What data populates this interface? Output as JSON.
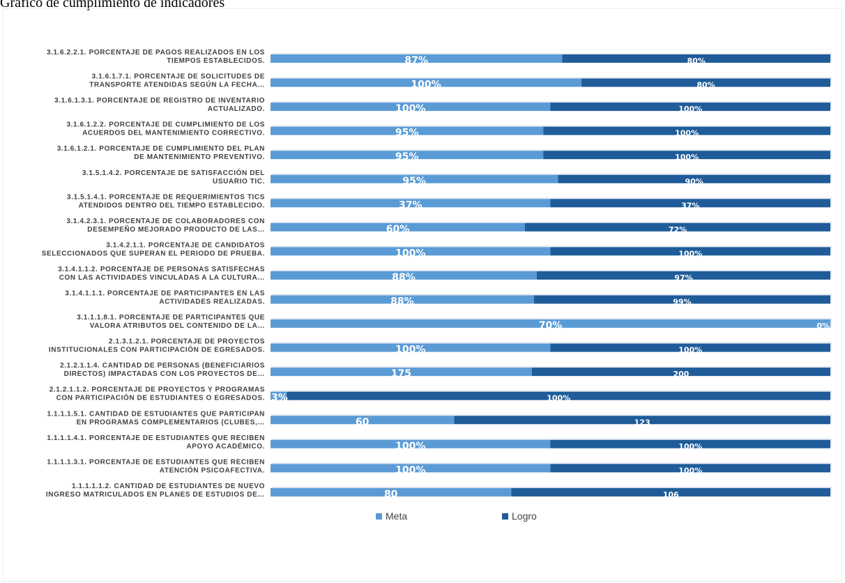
{
  "page": {
    "title": "Gráfico de cumplimiento de indicadores"
  },
  "chart_data": {
    "type": "bar",
    "orientation": "horizontal-stacked-100",
    "title": "",
    "xlabel": "",
    "ylabel": "",
    "grid": false,
    "legend_placement": "bottom",
    "colors": {
      "meta": "#5b9bd5",
      "logro": "#1f5c99"
    },
    "categories": [
      [
        "3.1.6.2.2.1. PORCENTAJE DE PAGOS REALIZADOS EN LOS",
        "TIEMPOS ESTABLECIDOS."
      ],
      [
        "3.1.6.1.7.1. PORCENTAJE DE SOLICITUDES DE",
        "TRANSPORTE ATENDIDAS SEGÚN LA FECHA…"
      ],
      [
        "3.1.6.1.3.1. PORCENTAJE DE REGISTRO DE INVENTARIO",
        "ACTUALIZADO."
      ],
      [
        "3.1.6.1.2.2. PORCENTAJE DE CUMPLIMIENTO DE LOS",
        "ACUERDOS DEL MANTENIMIENTO CORRECTIVO."
      ],
      [
        "3.1.6.1.2.1. PORCENTAJE DE CUMPLIMIENTO DEL PLAN",
        "DE MANTENIMIENTO PREVENTIVO."
      ],
      [
        "3.1.5.1.4.2. PORCENTAJE DE SATISFACCIÓN DEL",
        "USUARIO TIC."
      ],
      [
        "3.1.5.1.4.1. PORCENTAJE DE REQUERIMIENTOS TICS",
        "ATENDIDOS DENTRO DEL TIEMPO ESTABLECIDO."
      ],
      [
        "3.1.4.2.3.1. PORCENTAJE DE COLABORADORES CON",
        "DESEMPEÑO MEJORADO PRODUCTO DE LAS…"
      ],
      [
        "3.1.4.2.1.1. PORCENTAJE DE CANDIDATOS",
        "SELECCIONADOS QUE SUPERAN EL PERIODO DE PRUEBA."
      ],
      [
        "3.1.4.1.1.2. PORCENTAJE DE PERSONAS SATISFECHAS",
        "CON LAS ACTIVIDADES VINCULADAS A LA CULTURA…"
      ],
      [
        "3.1.4.1.1.1. PORCENTAJE DE PARTICIPANTES EN LAS",
        "ACTIVIDADES REALIZADAS."
      ],
      [
        "3.1.1.1.8.1. PORCENTAJE DE PARTICIPANTES QUE",
        "VALORA ATRIBUTOS DEL CONTENIDO DE LA…"
      ],
      [
        "2.1.3.1.2.1. PORCENTAJE DE PROYECTOS",
        "INSTITUCIONALES CON PARTICIPACIÓN DE EGRESADOS."
      ],
      [
        "2.1.2.1.1.4. CANTIDAD DE PERSONAS (BENEFICIARIOS",
        "DIRECTOS) IMPACTADAS CON LOS PROYECTOS DE…"
      ],
      [
        "2.1.2.1.1.2. PORCENTAJE DE PROYECTOS Y PROGRAMAS",
        "CON PARTICIPACIÓN DE ESTUDIANTES O EGRESADOS."
      ],
      [
        "1.1.1.1.5.1. CANTIDAD DE ESTUDIANTES QUE PARTICIPAN",
        "EN PROGRAMAS COMPLEMENTARIOS (CLUBES,…"
      ],
      [
        "1.1.1.1.4.1. PORCENTAJE DE ESTUDIANTES QUE RECIBEN",
        "APOYO ACADÉMICO."
      ],
      [
        "1.1.1.1.3.1. PORCENTAJE DE ESTUDIANTES QUE RECIBEN",
        "ATENCIÓN PSICOAFECTIVA."
      ],
      [
        "1.1.1.1.1.2. CANTIDAD DE ESTUDIANTES DE NUEVO",
        "INGRESO MATRICULADOS EN PLANES DE ESTUDIOS DE…"
      ]
    ],
    "series": [
      {
        "name": "Meta",
        "values": [
          87,
          100,
          100,
          95,
          95,
          95,
          37,
          60,
          100,
          88,
          88,
          70,
          100,
          175,
          3,
          60,
          100,
          100,
          80
        ],
        "labels": [
          "87%",
          "100%",
          "100%",
          "95%",
          "95%",
          "95%",
          "37%",
          "60%",
          "100%",
          "88%",
          "88%",
          "70%",
          "100%",
          "175",
          "3%",
          "60",
          "100%",
          "100%",
          "80"
        ]
      },
      {
        "name": "Logro",
        "values": [
          80,
          80,
          100,
          100,
          100,
          90,
          37,
          72,
          100,
          97,
          99,
          0,
          100,
          200,
          100,
          123,
          100,
          100,
          106
        ],
        "labels": [
          "80%",
          "80%",
          "100%",
          "100%",
          "100%",
          "90%",
          "37%",
          "72%",
          "100%",
          "97%",
          "99%",
          "0%",
          "100%",
          "200",
          "100%",
          "123",
          "100%",
          "100%",
          "106"
        ]
      }
    ]
  }
}
